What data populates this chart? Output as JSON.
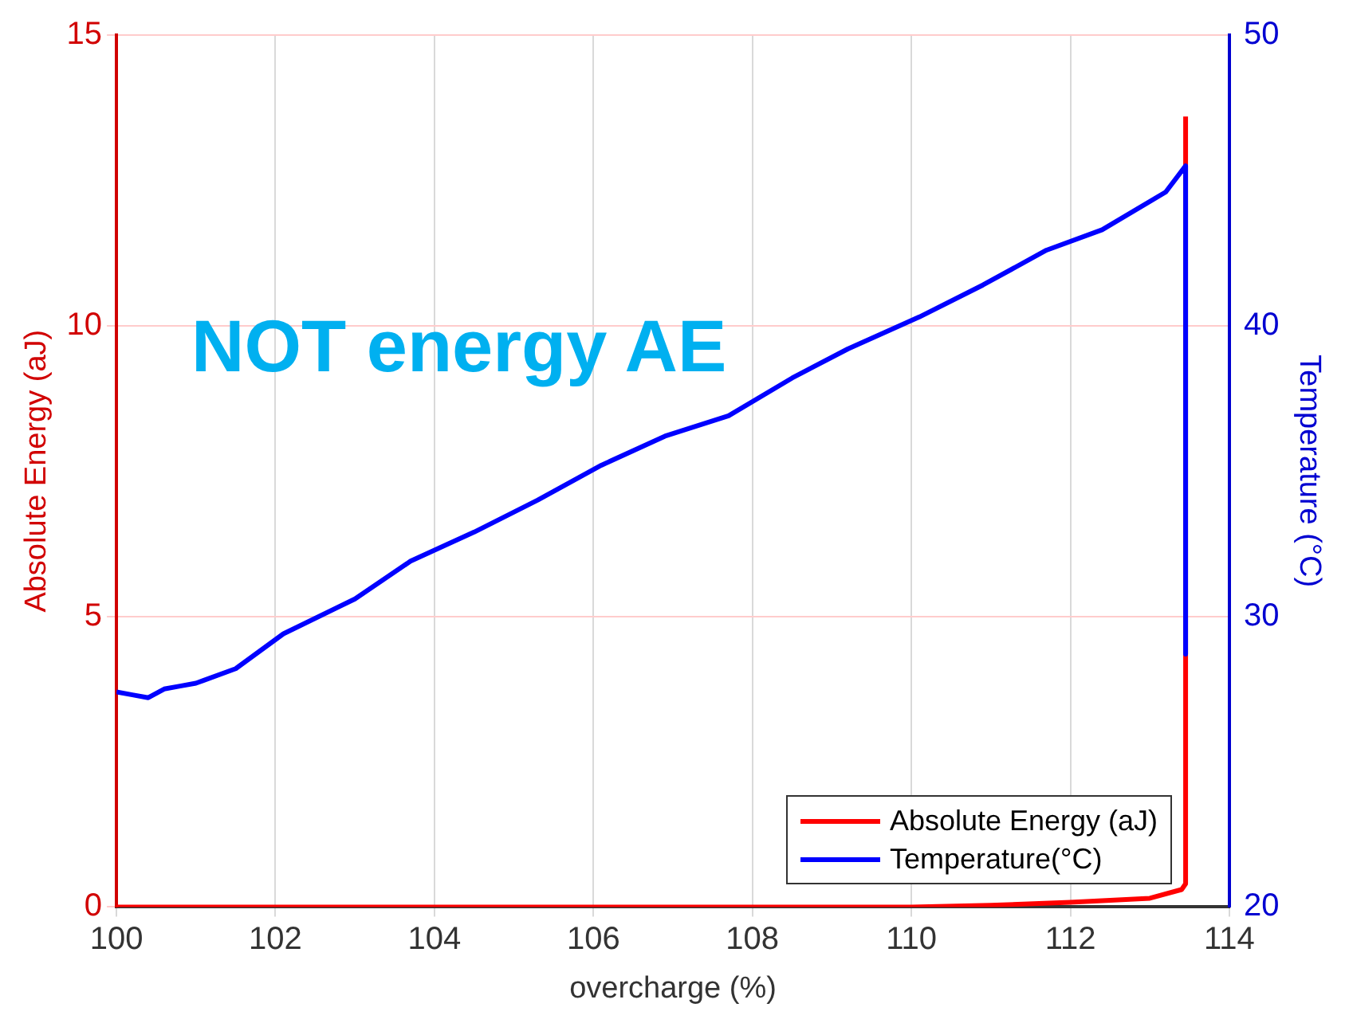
{
  "chart_data": {
    "type": "line",
    "xlabel": "overcharge (%)",
    "ylabel": "Absolute Energy (aJ)",
    "y2label": "Temperature (°C)",
    "annotations": [
      "NOT energy AE"
    ],
    "xlim": [
      100,
      114
    ],
    "xticks": [
      100,
      102,
      104,
      106,
      108,
      110,
      112,
      114
    ],
    "ylim": [
      0,
      15
    ],
    "yticks": [
      0,
      5,
      10,
      15
    ],
    "y2lim": [
      20,
      50
    ],
    "y2ticks": [
      20,
      30,
      40,
      50
    ],
    "grid": true,
    "legend": "bottom right",
    "marker": "none",
    "line_style": "solid",
    "series": [
      {
        "name": "Absolute Energy (aJ)",
        "color": "#ff0000",
        "x": [
          100,
          102,
          104,
          106,
          108,
          110,
          111,
          112,
          113,
          113.4,
          113.45,
          113.45
        ],
        "values": [
          0,
          0,
          0,
          0,
          0,
          0,
          0.03,
          0.08,
          0.15,
          0.3,
          0.4,
          13.6
        ]
      },
      {
        "name": "Temperature(°C)",
        "color": "#0000ff",
        "axis": "y2",
        "x": [
          100,
          100.2,
          100.4,
          100.6,
          100.8,
          101,
          101.5,
          102.1,
          103,
          103.7,
          104.5,
          105.3,
          106.1,
          106.9,
          107.7,
          108.5,
          109.2,
          110.1,
          110.9,
          111.7,
          112.4,
          113.2,
          113.45,
          113.45
        ],
        "values": [
          27.4,
          27.3,
          27.2,
          27.5,
          27.6,
          27.7,
          28.2,
          29.4,
          30.6,
          31.9,
          32.9,
          34,
          35.2,
          36.2,
          36.9,
          38.2,
          39.2,
          40.3,
          41.4,
          42.6,
          43.3,
          44.6,
          45.5,
          28.7
        ]
      }
    ]
  }
}
